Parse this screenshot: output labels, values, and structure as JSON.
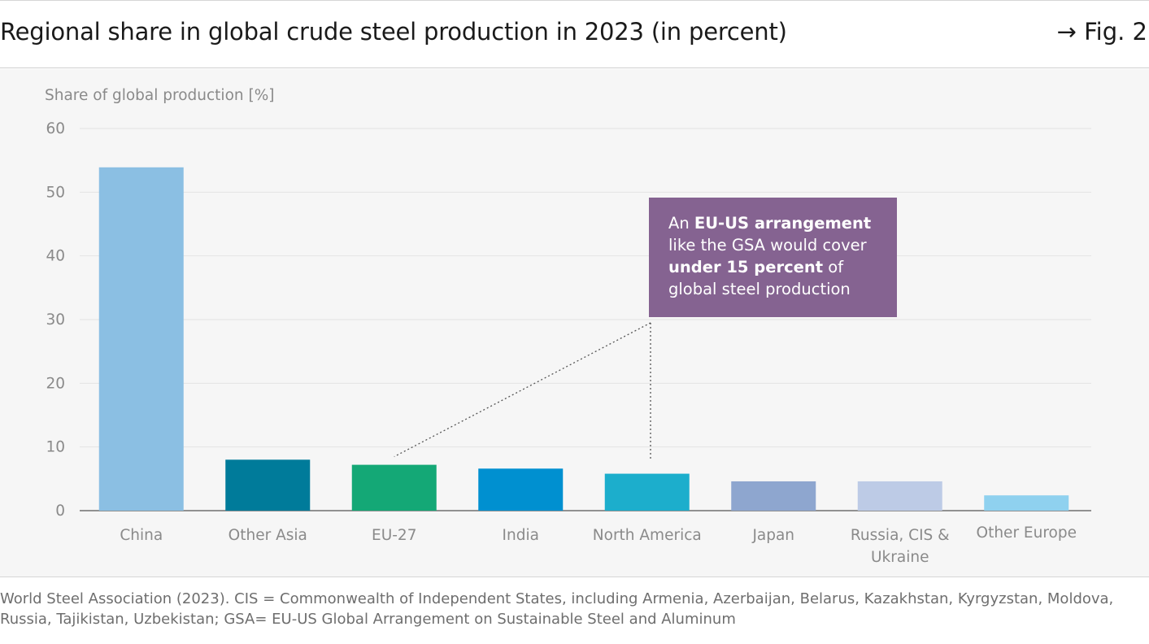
{
  "header": {
    "title": "Regional share in global crude steel production in 2023 (in percent)",
    "figure_label": "→ Fig. 2"
  },
  "colors": {
    "grid": "#e3e3e3",
    "axis_text": "#8a8a8a",
    "callout_bg": "#856391",
    "leader": "#555555"
  },
  "chart_data": {
    "type": "bar",
    "title": "Regional share in global crude steel production in 2023 (in percent)",
    "ylabel": "Share of global production [%]",
    "xlabel": "",
    "ylim": [
      0,
      60
    ],
    "yticks": [
      0,
      10,
      20,
      30,
      40,
      50,
      60
    ],
    "grid": true,
    "categories": [
      "China",
      "Other Asia",
      "EU-27",
      "India",
      "North America",
      "Japan",
      "Russia, CIS & Ukraine",
      "Other Europe"
    ],
    "category_lines": [
      [
        "China"
      ],
      [
        "Other Asia"
      ],
      [
        "EU-27"
      ],
      [
        "India"
      ],
      [
        "North America"
      ],
      [
        "Japan"
      ],
      [
        "Russia, CIS &",
        "Ukraine"
      ],
      [
        "Other Europe"
      ]
    ],
    "values": [
      53.9,
      8.0,
      7.2,
      6.6,
      5.8,
      4.6,
      4.6,
      2.4
    ],
    "colors": [
      "#8bbfe3",
      "#007b9a",
      "#14a876",
      "#0090d0",
      "#1caecc",
      "#8ea6cf",
      "#bdcbe6",
      "#8fd1ef"
    ],
    "annotation": {
      "parts": [
        {
          "text": "An ",
          "bold": false
        },
        {
          "text": "EU-US arrangement",
          "bold": true
        },
        {
          "text": "like the GSA would cover",
          "bold": false,
          "break_before": true
        },
        {
          "text": "under 15 percent",
          "bold": true,
          "break_before": true
        },
        {
          "text": " of",
          "bold": false
        },
        {
          "text": "global steel production",
          "bold": false,
          "break_before": true
        }
      ],
      "points_to": [
        "EU-27",
        "North America"
      ]
    }
  },
  "source": {
    "text": "World Steel Association (2023). CIS = Commonwealth of Independent States, including Armenia, Azerbaijan, Belarus, Kazakhstan, Kyrgyzstan, Moldova, Russia, Tajikistan, Uzbekistan; GSA= EU-US Global Arrangement on Sustainable Steel and Aluminum"
  }
}
